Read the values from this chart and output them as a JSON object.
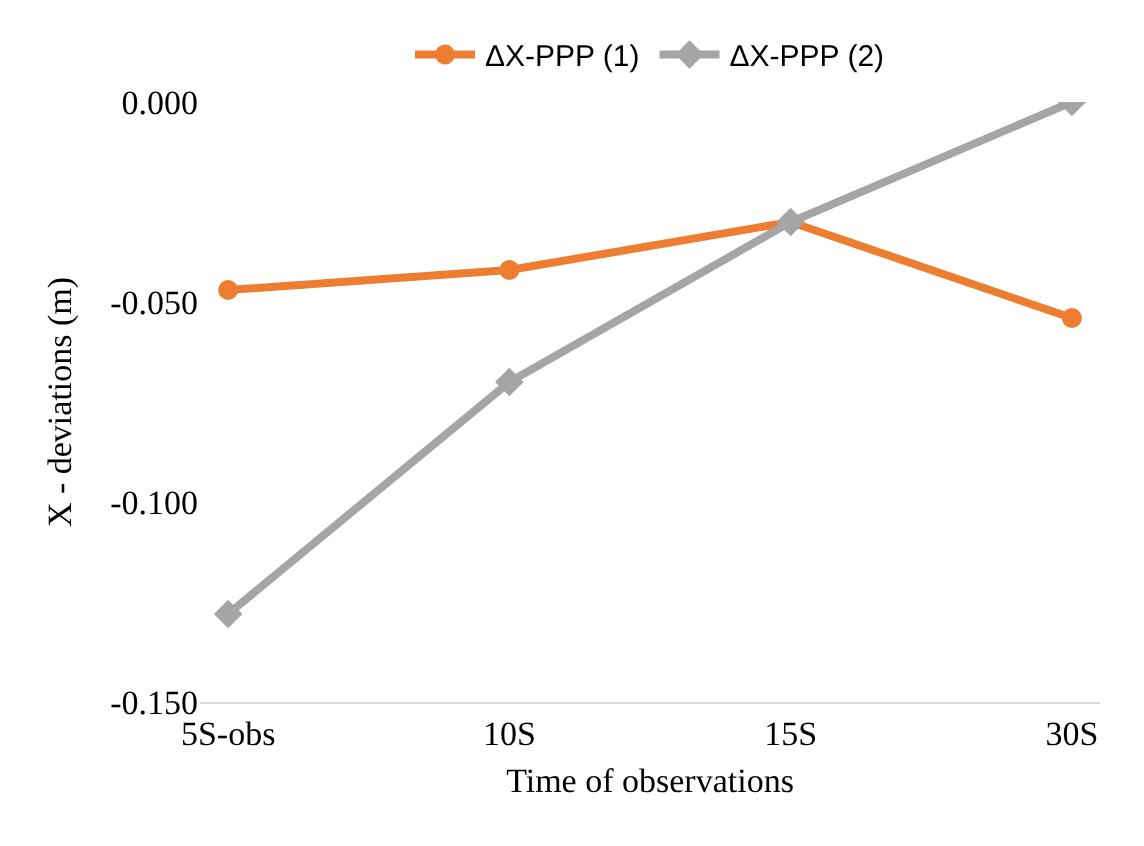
{
  "chart_data": {
    "type": "line",
    "xlabel": "Time of observations",
    "ylabel": "X - deviations (m)",
    "categories": [
      "5S-obs",
      "10S",
      "15S",
      "30S"
    ],
    "series": [
      {
        "name": "ΔX-PPP (1)",
        "color": "#ed7d31",
        "values": [
          -0.047,
          -0.042,
          -0.03,
          -0.054
        ],
        "marker": "circle"
      },
      {
        "name": "ΔX-PPP (2)",
        "color": "#a5a5a5",
        "values": [
          -0.128,
          -0.07,
          -0.03,
          0.0
        ],
        "marker": "diamond"
      }
    ],
    "ylim": [
      -0.15,
      0
    ],
    "yticks": [
      {
        "value": 0,
        "label": "0.000"
      },
      {
        "value": -0.05,
        "label": "-0.050"
      },
      {
        "value": -0.1,
        "label": "-0.100"
      },
      {
        "value": -0.15,
        "label": "-0.150"
      }
    ],
    "grid": false,
    "legend": "top",
    "line_style": "solid"
  }
}
